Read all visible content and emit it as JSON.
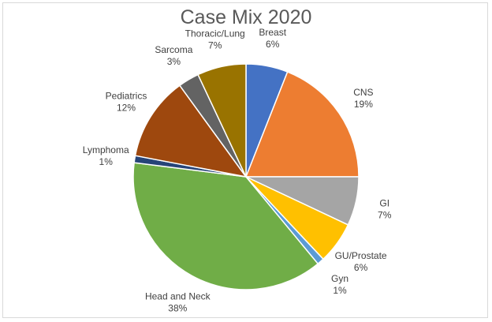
{
  "chart_data": {
    "type": "pie",
    "title": "Case Mix 2020",
    "start_angle_deg": 0,
    "direction": "clockwise",
    "slices": [
      {
        "label": "Breast",
        "value": 6,
        "display": "6%",
        "color": "#4472c4"
      },
      {
        "label": "CNS",
        "value": 19,
        "display": "19%",
        "color": "#ed7d31"
      },
      {
        "label": "GI",
        "value": 7,
        "display": "7%",
        "color": "#a5a5a5"
      },
      {
        "label": "GU/Prostate",
        "value": 6,
        "display": "6%",
        "color": "#ffc000"
      },
      {
        "label": "Gyn",
        "value": 1,
        "display": "1%",
        "color": "#5b9bd5"
      },
      {
        "label": "Head and Neck",
        "value": 38,
        "display": "38%",
        "color": "#70ad47"
      },
      {
        "label": "Lymphoma",
        "value": 1,
        "display": "1%",
        "color": "#264478"
      },
      {
        "label": "Pediatrics",
        "value": 12,
        "display": "12%",
        "color": "#9e480e"
      },
      {
        "label": "Sarcoma",
        "value": 3,
        "display": "3%",
        "color": "#636363"
      },
      {
        "label": "Thoracic/Lung",
        "value": 7,
        "display": "7%",
        "color": "#997300"
      }
    ],
    "legend": "none",
    "data_labels": "outside"
  }
}
